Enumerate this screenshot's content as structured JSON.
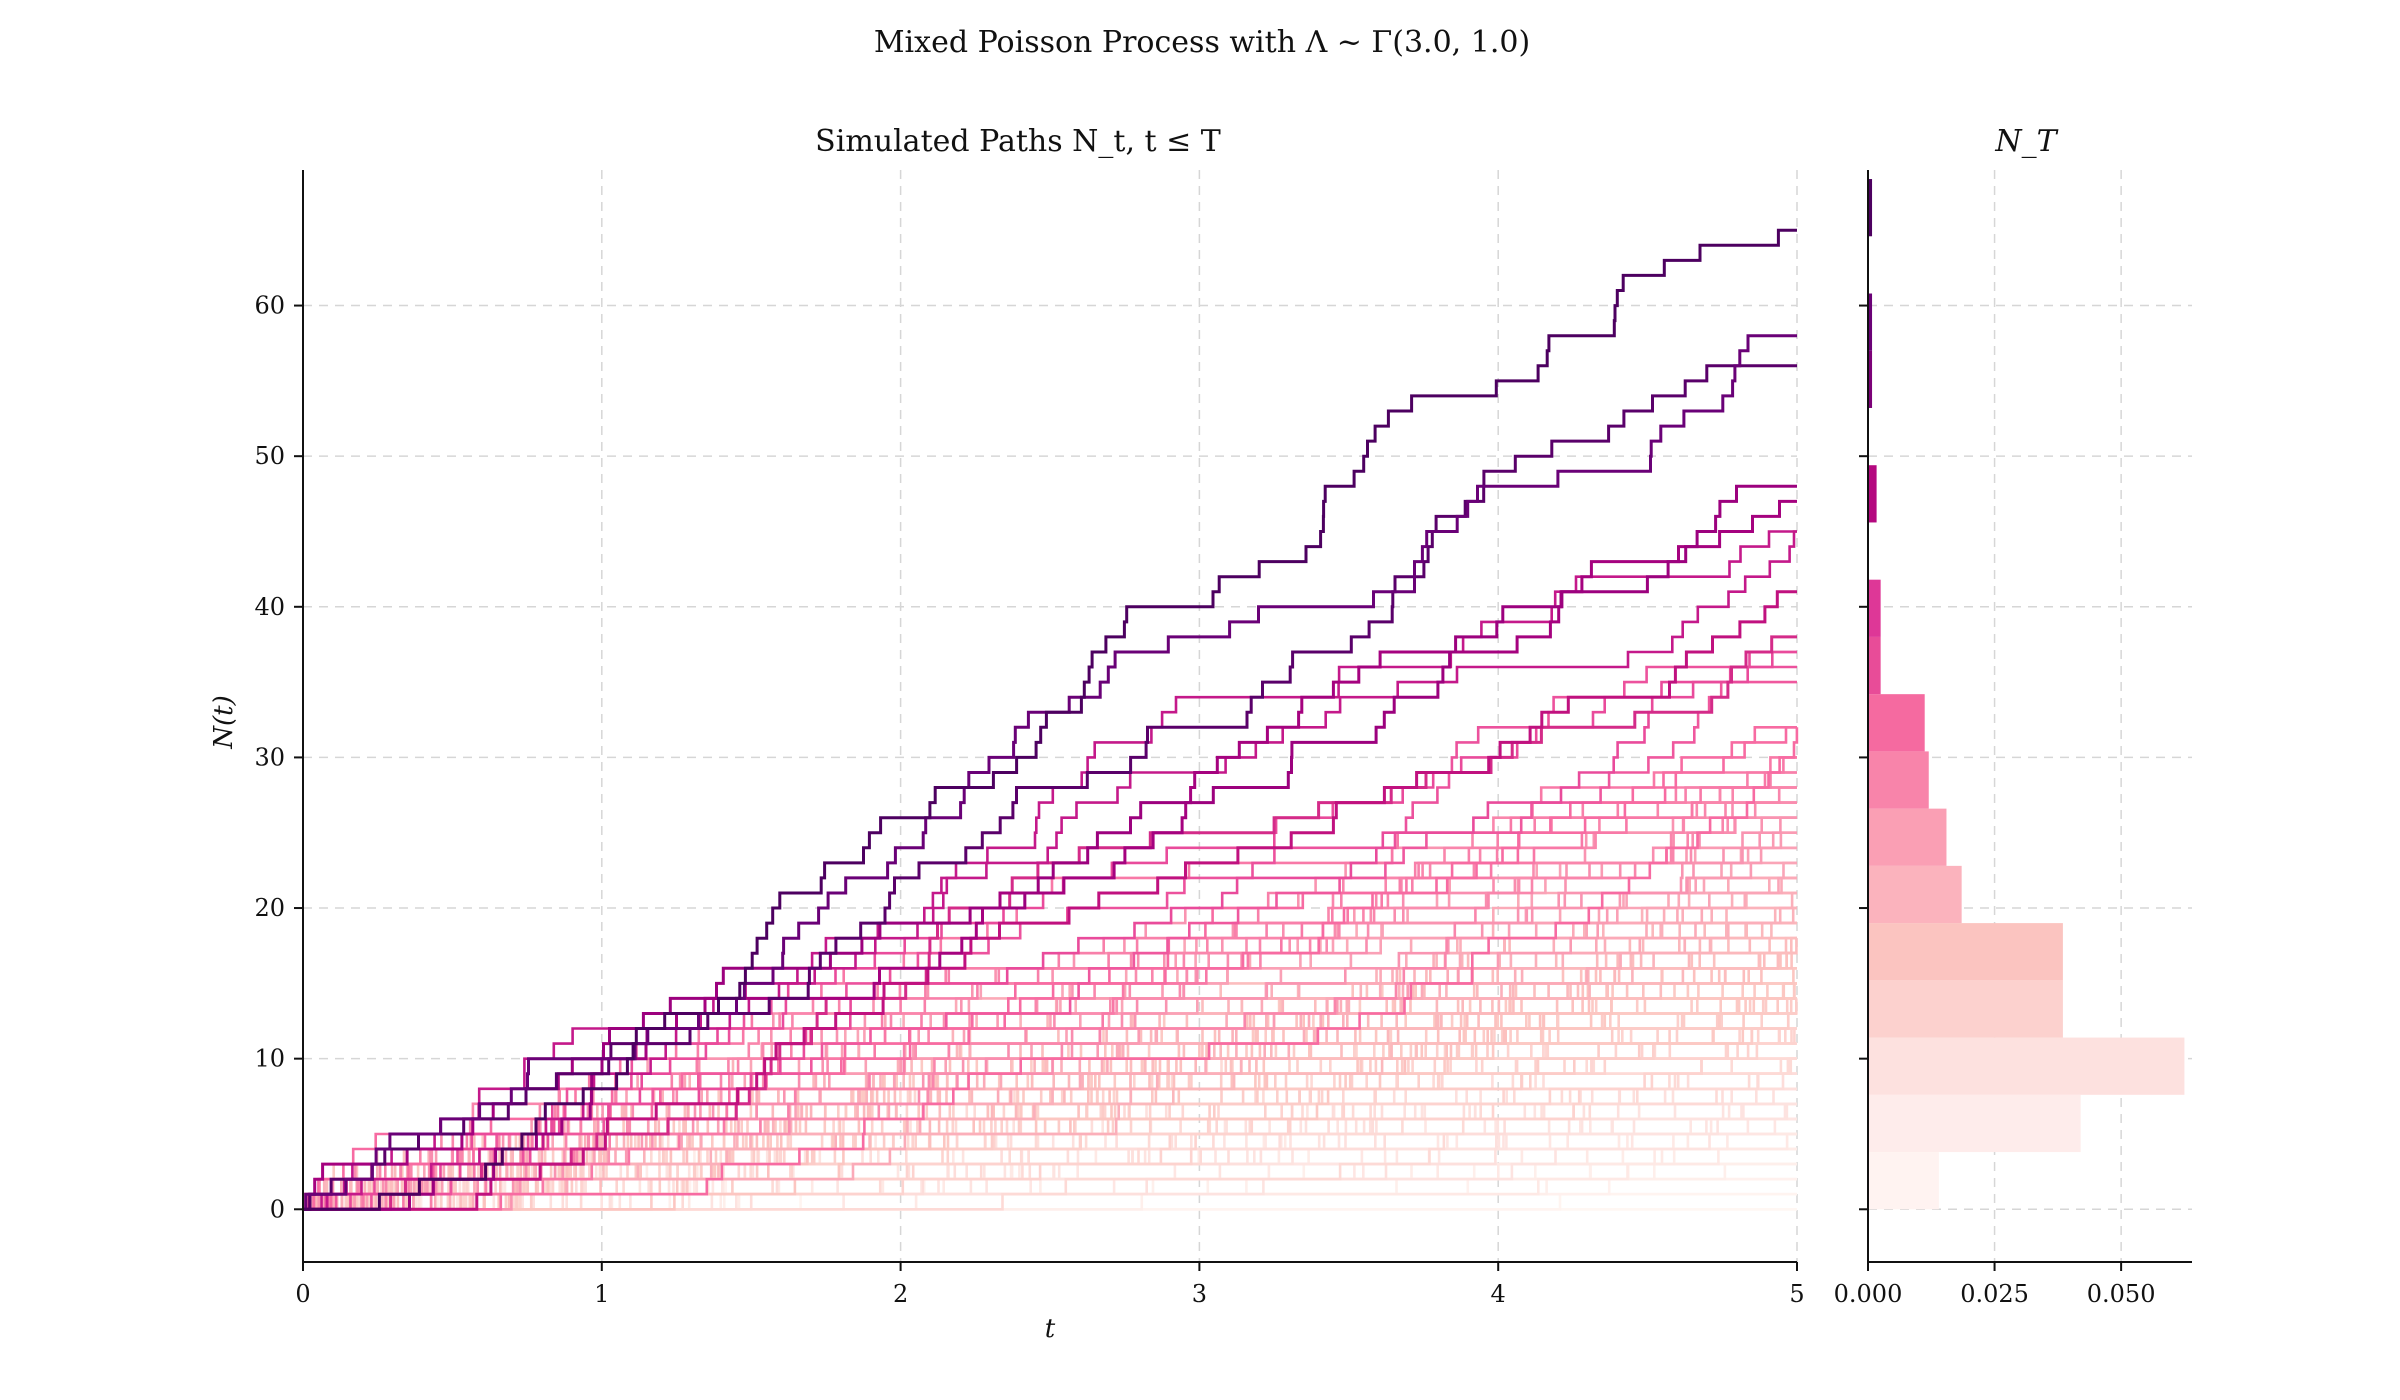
{
  "figure": {
    "suptitle": "Mixed Poisson Process with Λ ~ Γ(3.0, 1.0)"
  },
  "chart_data": [
    {
      "type": "line",
      "title": "Simulated Paths N_t, t ≤ T",
      "xlabel": "t",
      "ylabel": "N(t)",
      "xlim": [
        0,
        5
      ],
      "ylim": [
        -3.5,
        69
      ],
      "xticks": [
        "0",
        "1",
        "2",
        "3",
        "4",
        "5"
      ],
      "yticks": [
        "0",
        "10",
        "20",
        "30",
        "40",
        "50",
        "60"
      ],
      "grid": true,
      "n_paths": 200,
      "highlighted_paths": [
        {
          "final_count": 65,
          "color": "#4d0060"
        },
        {
          "final_count": 58,
          "color": "#6a0177"
        },
        {
          "final_count": 56,
          "color": "#5a006a"
        },
        {
          "final_count": 48,
          "color": "#9c017e"
        },
        {
          "final_count": 47,
          "color": "#a5027f"
        },
        {
          "final_count": 41,
          "color": "#c0117f"
        },
        {
          "final_count": 38,
          "color": "#d42b89"
        }
      ],
      "colormap": [
        "#fff7f3",
        "#fde0dd",
        "#fcc5c0",
        "#fa9fb5",
        "#f768a1",
        "#dd3497",
        "#ae017e",
        "#7a0177",
        "#49006a"
      ]
    },
    {
      "type": "bar",
      "orientation": "horizontal",
      "title": "N_T",
      "xlim": [
        0,
        0.064
      ],
      "xticks": [
        "0.000",
        "0.025",
        "0.050"
      ],
      "bins": [
        {
          "lo": 0,
          "hi": 3.8,
          "density": 0.014,
          "color": "#fff3f1"
        },
        {
          "lo": 3.8,
          "hi": 7.6,
          "density": 0.042,
          "color": "#feeceb"
        },
        {
          "lo": 7.6,
          "hi": 11.4,
          "density": 0.0625,
          "color": "#fde1df"
        },
        {
          "lo": 11.4,
          "hi": 15.2,
          "density": 0.0385,
          "color": "#fcd1ce"
        },
        {
          "lo": 15.2,
          "hi": 19.0,
          "density": 0.0385,
          "color": "#fbc4c0"
        },
        {
          "lo": 19.0,
          "hi": 22.8,
          "density": 0.0185,
          "color": "#fbb3bd"
        },
        {
          "lo": 22.8,
          "hi": 26.6,
          "density": 0.0155,
          "color": "#fa9fb4"
        },
        {
          "lo": 26.6,
          "hi": 30.4,
          "density": 0.012,
          "color": "#f884aa"
        },
        {
          "lo": 30.4,
          "hi": 34.2,
          "density": 0.0112,
          "color": "#f56aa0"
        },
        {
          "lo": 34.2,
          "hi": 38.0,
          "density": 0.0025,
          "color": "#e84c98"
        },
        {
          "lo": 38.0,
          "hi": 41.8,
          "density": 0.0025,
          "color": "#de3797"
        },
        {
          "lo": 45.6,
          "hi": 49.4,
          "density": 0.0017,
          "color": "#b4087f"
        },
        {
          "lo": 53.2,
          "hi": 57.0,
          "density": 0.0008,
          "color": "#7c0178"
        },
        {
          "lo": 57.0,
          "hi": 60.8,
          "density": 0.0008,
          "color": "#6a0177"
        },
        {
          "lo": 64.6,
          "hi": 68.4,
          "density": 0.0008,
          "color": "#4d0060"
        }
      ]
    }
  ]
}
